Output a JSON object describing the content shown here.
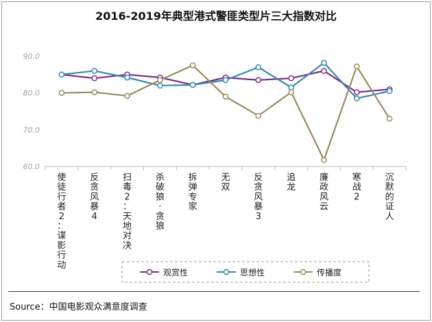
{
  "title": "2016-2019年典型港式警匪类型片三大指数对比",
  "source": "Source：中国电影观众满意度调查",
  "chart_data": {
    "type": "line",
    "title": "2016-2019年典型港式警匪类型片三大指数对比",
    "categories": [
      "使徒行者2：谍影行动",
      "反贪风暴4",
      "扫毒2：天地对决",
      "杀破狼·贪狼",
      "拆弹专家",
      "无双",
      "反贪风暴3",
      "追龙",
      "廉政风云",
      "寒战2",
      "沉默的证人"
    ],
    "y_ticks": [
      "60.0",
      "70.0",
      "80.0",
      "90.0"
    ],
    "ylim": [
      60,
      90
    ],
    "grid": false,
    "legend_position": "bottom",
    "series": [
      {
        "name": "观赏性",
        "color": "#7b2b8e",
        "values": [
          85.0,
          84.0,
          85.0,
          84.2,
          82.2,
          84.2,
          83.5,
          84.0,
          86.0,
          80.2,
          81.0
        ]
      },
      {
        "name": "思想性",
        "color": "#2f8ab4",
        "values": [
          85.0,
          86.0,
          84.2,
          82.0,
          82.2,
          83.5,
          87.0,
          81.5,
          88.2,
          78.5,
          80.5
        ]
      },
      {
        "name": "传播度",
        "color": "#9a8a5a",
        "values": [
          80.0,
          80.2,
          79.2,
          83.5,
          87.5,
          79.0,
          73.8,
          80.2,
          61.8,
          87.2,
          73.0
        ]
      }
    ]
  }
}
